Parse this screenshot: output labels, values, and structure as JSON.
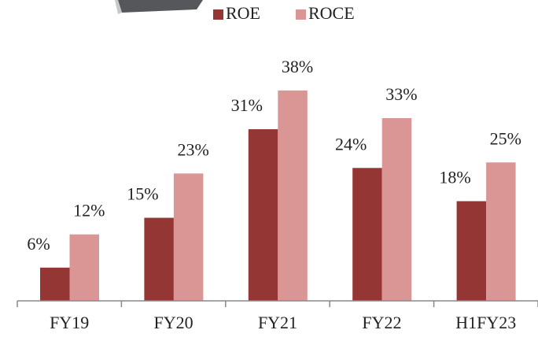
{
  "chart_data": {
    "type": "bar",
    "categories": [
      "FY19",
      "FY20",
      "FY21",
      "FY22",
      "H1FY23"
    ],
    "series": [
      {
        "name": "ROE",
        "color": "#943634",
        "values": [
          6,
          15,
          31,
          24,
          18
        ],
        "value_labels": [
          "6%",
          "15%",
          "31%",
          "24%",
          "18%"
        ]
      },
      {
        "name": "ROCE",
        "color": "#d99694",
        "values": [
          12,
          23,
          38,
          33,
          25
        ],
        "value_labels": [
          "12%",
          "23%",
          "38%",
          "33%",
          "25%"
        ]
      }
    ]
  }
}
